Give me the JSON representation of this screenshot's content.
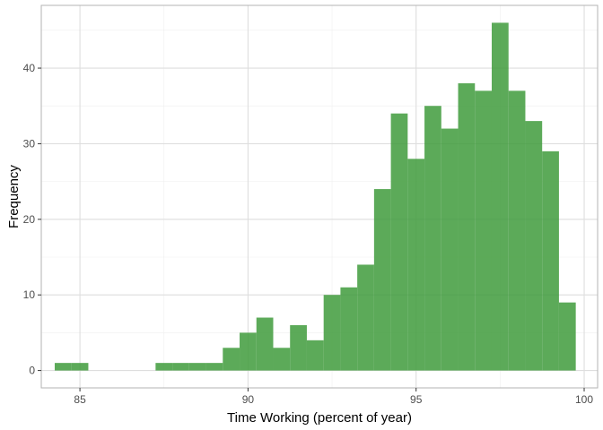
{
  "chart_data": {
    "type": "bar",
    "xlabel": "Time Working (percent of year)",
    "ylabel": "Frequency",
    "xlim": [
      83.85,
      100.4
    ],
    "ylim": [
      -2.3,
      48.3
    ],
    "x_ticks": [
      85,
      90,
      95,
      100
    ],
    "y_ticks": [
      0,
      10,
      20,
      30,
      40
    ],
    "bin_width": 0.5,
    "bins": [
      {
        "start": 84.25,
        "end": 84.75,
        "count": 1
      },
      {
        "start": 84.75,
        "end": 85.25,
        "count": 1
      },
      {
        "start": 85.25,
        "end": 85.75,
        "count": 0
      },
      {
        "start": 85.75,
        "end": 86.25,
        "count": 0
      },
      {
        "start": 86.25,
        "end": 86.75,
        "count": 0
      },
      {
        "start": 86.75,
        "end": 87.25,
        "count": 0
      },
      {
        "start": 87.25,
        "end": 87.75,
        "count": 1
      },
      {
        "start": 87.75,
        "end": 88.25,
        "count": 1
      },
      {
        "start": 88.25,
        "end": 88.75,
        "count": 1
      },
      {
        "start": 88.75,
        "end": 89.25,
        "count": 1
      },
      {
        "start": 89.25,
        "end": 89.75,
        "count": 3
      },
      {
        "start": 89.75,
        "end": 90.25,
        "count": 5
      },
      {
        "start": 90.25,
        "end": 90.75,
        "count": 7
      },
      {
        "start": 90.75,
        "end": 91.25,
        "count": 3
      },
      {
        "start": 91.25,
        "end": 91.75,
        "count": 6
      },
      {
        "start": 91.75,
        "end": 92.25,
        "count": 4
      },
      {
        "start": 92.25,
        "end": 92.75,
        "count": 10
      },
      {
        "start": 92.75,
        "end": 93.25,
        "count": 11
      },
      {
        "start": 93.25,
        "end": 93.75,
        "count": 14
      },
      {
        "start": 93.75,
        "end": 94.25,
        "count": 24
      },
      {
        "start": 94.25,
        "end": 94.75,
        "count": 34
      },
      {
        "start": 94.75,
        "end": 95.25,
        "count": 28
      },
      {
        "start": 95.25,
        "end": 95.75,
        "count": 35
      },
      {
        "start": 95.75,
        "end": 96.25,
        "count": 32
      },
      {
        "start": 96.25,
        "end": 96.75,
        "count": 38
      },
      {
        "start": 96.75,
        "end": 97.25,
        "count": 37
      },
      {
        "start": 97.25,
        "end": 97.75,
        "count": 46
      },
      {
        "start": 97.75,
        "end": 98.25,
        "count": 37
      },
      {
        "start": 98.25,
        "end": 98.75,
        "count": 33
      },
      {
        "start": 98.75,
        "end": 99.25,
        "count": 29
      },
      {
        "start": 99.25,
        "end": 99.75,
        "count": 9
      }
    ],
    "grid": true,
    "colors": {
      "bar_fill": "#3f9b3c",
      "panel_border": "#b3b3b3",
      "grid_major": "#dedede",
      "grid_minor": "#efefef"
    }
  }
}
